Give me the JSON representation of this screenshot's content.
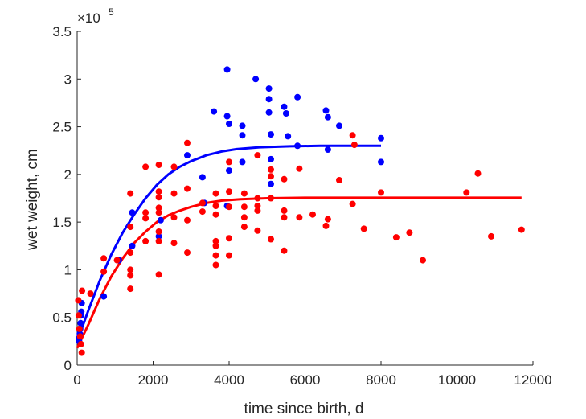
{
  "chart_data": {
    "type": "scatter",
    "title": "",
    "xlabel": "time since birth, d",
    "ylabel": "wet weight, cm",
    "xlim": [
      0,
      12000
    ],
    "ylim": [
      0,
      350000
    ],
    "x_ticks": [
      0,
      2000,
      4000,
      6000,
      8000,
      10000,
      12000
    ],
    "x_tick_labels": [
      "0",
      "2000",
      "4000",
      "6000",
      "8000",
      "10000",
      "12000"
    ],
    "y_ticks": [
      0,
      50000,
      100000,
      150000,
      200000,
      250000,
      300000,
      350000
    ],
    "y_tick_labels": [
      "0",
      "0.5",
      "1",
      "1.5",
      "2",
      "2.5",
      "3",
      "3.5"
    ],
    "y_exponent_base": "×10",
    "y_exponent_power": "5",
    "grid": false,
    "legend": "none",
    "series": [
      {
        "color": "#0000ff",
        "points": [
          [
            50,
            25000
          ],
          [
            60,
            29000
          ],
          [
            70,
            33000
          ],
          [
            80,
            38000
          ],
          [
            90,
            44000
          ],
          [
            100,
            52000
          ],
          [
            110,
            56000
          ],
          [
            120,
            65000
          ],
          [
            700,
            72000
          ],
          [
            1100,
            110000
          ],
          [
            1450,
            125000
          ],
          [
            1450,
            160000
          ],
          [
            2150,
            135000
          ],
          [
            2200,
            152000
          ],
          [
            2900,
            220000
          ],
          [
            3300,
            197000
          ],
          [
            3350,
            170000
          ],
          [
            3600,
            266000
          ],
          [
            3950,
            310000
          ],
          [
            3950,
            261000
          ],
          [
            3950,
            167000
          ],
          [
            4000,
            253000
          ],
          [
            4000,
            204000
          ],
          [
            4350,
            213000
          ],
          [
            4350,
            241000
          ],
          [
            4350,
            251000
          ],
          [
            4700,
            300000
          ],
          [
            5050,
            290000
          ],
          [
            5050,
            279000
          ],
          [
            5050,
            265000
          ],
          [
            5100,
            242000
          ],
          [
            5100,
            216000
          ],
          [
            5100,
            190000
          ],
          [
            5450,
            271000
          ],
          [
            5500,
            264000
          ],
          [
            5550,
            240000
          ],
          [
            5800,
            281000
          ],
          [
            5800,
            230000
          ],
          [
            6550,
            267000
          ],
          [
            6600,
            260000
          ],
          [
            6600,
            226000
          ],
          [
            6900,
            251000
          ],
          [
            8000,
            238000
          ],
          [
            8000,
            213000
          ]
        ],
        "fit": [
          [
            0,
            25000
          ],
          [
            300,
            58000
          ],
          [
            600,
            89000
          ],
          [
            900,
            116000
          ],
          [
            1200,
            139000
          ],
          [
            1500,
            158000
          ],
          [
            1800,
            175000
          ],
          [
            2100,
            189000
          ],
          [
            2400,
            200000
          ],
          [
            2700,
            208000
          ],
          [
            3000,
            214000
          ],
          [
            3400,
            220000
          ],
          [
            3800,
            224000
          ],
          [
            4200,
            226500
          ],
          [
            4800,
            228500
          ],
          [
            5600,
            229500
          ],
          [
            6400,
            230000
          ],
          [
            8000,
            230000
          ]
        ]
      },
      {
        "color": "#ff0000",
        "points": [
          [
            30,
            68000
          ],
          [
            40,
            52000
          ],
          [
            60,
            38000
          ],
          [
            80,
            30000
          ],
          [
            100,
            22000
          ],
          [
            120,
            13000
          ],
          [
            130,
            78000
          ],
          [
            350,
            75000
          ],
          [
            700,
            112000
          ],
          [
            700,
            98000
          ],
          [
            1050,
            110000
          ],
          [
            1400,
            180000
          ],
          [
            1400,
            145000
          ],
          [
            1400,
            118000
          ],
          [
            1400,
            100000
          ],
          [
            1400,
            94000
          ],
          [
            1400,
            80000
          ],
          [
            1800,
            208000
          ],
          [
            1800,
            160000
          ],
          [
            1800,
            154000
          ],
          [
            1800,
            130000
          ],
          [
            2150,
            210000
          ],
          [
            2150,
            182000
          ],
          [
            2150,
            176000
          ],
          [
            2150,
            165000
          ],
          [
            2150,
            160000
          ],
          [
            2150,
            140000
          ],
          [
            2150,
            130000
          ],
          [
            2150,
            95000
          ],
          [
            2550,
            208000
          ],
          [
            2550,
            180000
          ],
          [
            2550,
            155000
          ],
          [
            2550,
            128000
          ],
          [
            2900,
            233000
          ],
          [
            2900,
            185000
          ],
          [
            2900,
            152000
          ],
          [
            2900,
            118000
          ],
          [
            3300,
            170000
          ],
          [
            3300,
            161000
          ],
          [
            3650,
            180000
          ],
          [
            3650,
            167000
          ],
          [
            3650,
            158000
          ],
          [
            3650,
            130000
          ],
          [
            3650,
            125000
          ],
          [
            3650,
            115000
          ],
          [
            3650,
            105000
          ],
          [
            4000,
            213000
          ],
          [
            4000,
            182000
          ],
          [
            4000,
            166000
          ],
          [
            4000,
            133000
          ],
          [
            4000,
            115000
          ],
          [
            4400,
            180000
          ],
          [
            4400,
            166000
          ],
          [
            4400,
            155000
          ],
          [
            4400,
            145000
          ],
          [
            4750,
            220000
          ],
          [
            4750,
            175000
          ],
          [
            4750,
            167000
          ],
          [
            4750,
            162000
          ],
          [
            4750,
            141000
          ],
          [
            5100,
            205000
          ],
          [
            5100,
            198000
          ],
          [
            5100,
            175000
          ],
          [
            5100,
            132000
          ],
          [
            5450,
            195000
          ],
          [
            5450,
            162000
          ],
          [
            5450,
            155000
          ],
          [
            5450,
            120000
          ],
          [
            5850,
            206000
          ],
          [
            5850,
            155000
          ],
          [
            6200,
            158000
          ],
          [
            6550,
            146000
          ],
          [
            6600,
            153000
          ],
          [
            6900,
            194000
          ],
          [
            7250,
            241000
          ],
          [
            7300,
            231000
          ],
          [
            7250,
            169000
          ],
          [
            7550,
            143000
          ],
          [
            8000,
            181000
          ],
          [
            8400,
            134000
          ],
          [
            8750,
            139000
          ],
          [
            9100,
            110000
          ],
          [
            10250,
            181000
          ],
          [
            10550,
            201000
          ],
          [
            10900,
            135000
          ],
          [
            11700,
            142000
          ]
        ],
        "fit": [
          [
            0,
            18000
          ],
          [
            300,
            43000
          ],
          [
            600,
            70000
          ],
          [
            900,
            93000
          ],
          [
            1200,
            112000
          ],
          [
            1500,
            128000
          ],
          [
            1800,
            140000
          ],
          [
            2100,
            150000
          ],
          [
            2400,
            157000
          ],
          [
            2700,
            162000
          ],
          [
            3000,
            166000
          ],
          [
            3400,
            170000
          ],
          [
            3800,
            172500
          ],
          [
            4300,
            174000
          ],
          [
            5000,
            175000
          ],
          [
            6000,
            175500
          ],
          [
            8000,
            175500
          ],
          [
            11700,
            175500
          ]
        ]
      }
    ]
  }
}
